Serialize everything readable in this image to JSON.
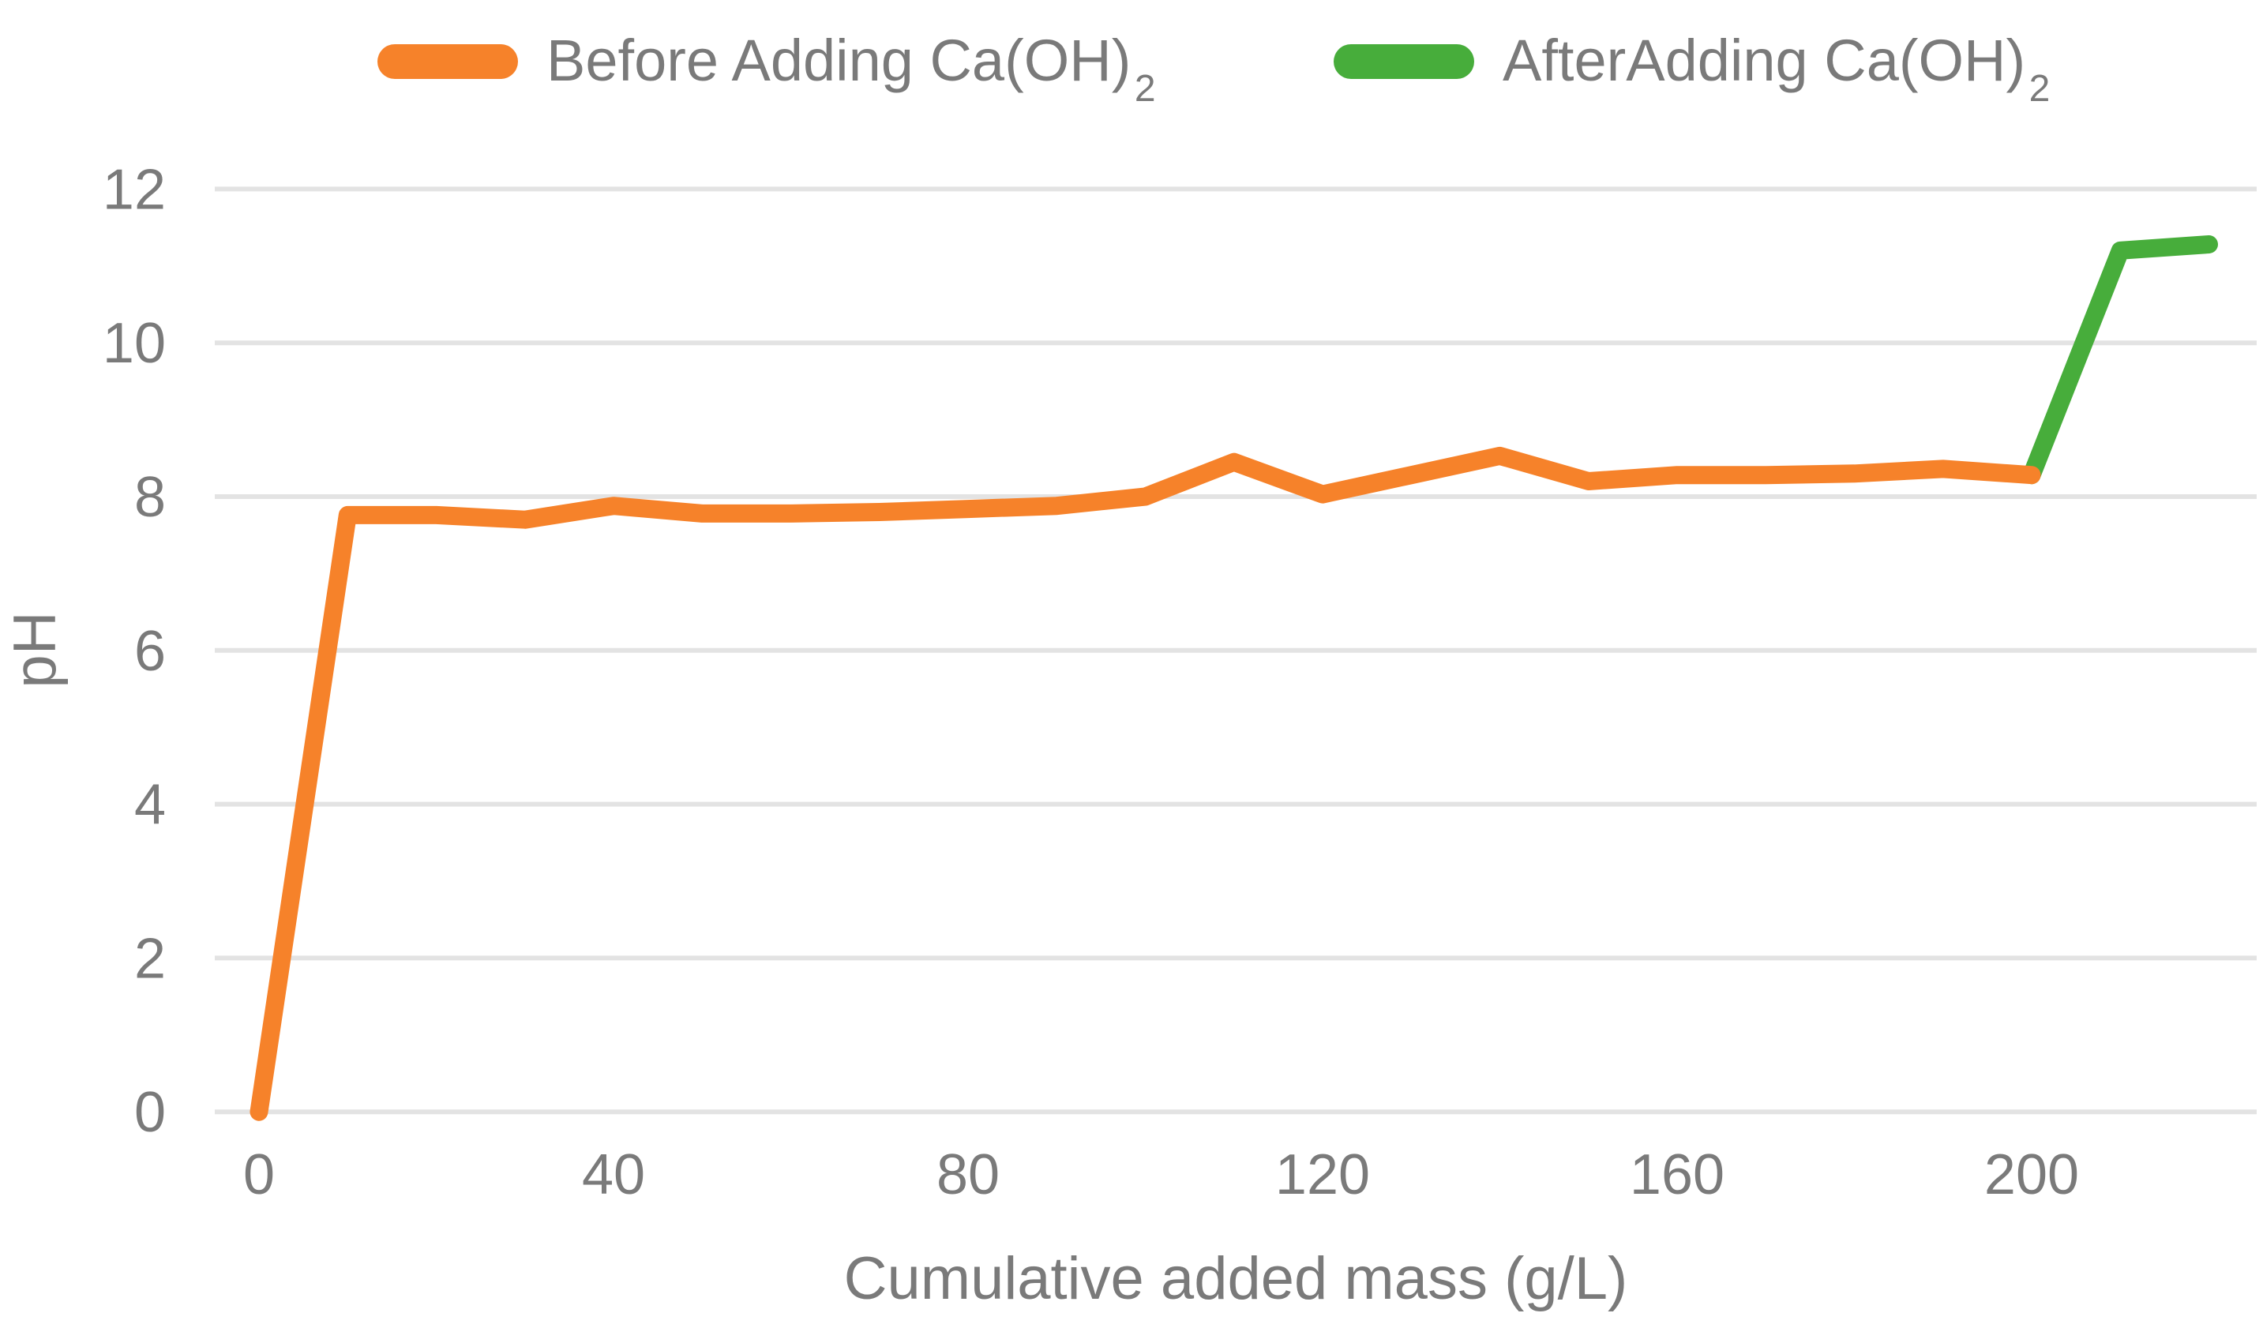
{
  "chart_data": {
    "type": "line",
    "title": "",
    "xlabel": "Cumulative added mass (g/L)",
    "ylabel": "pH",
    "xlim": [
      0,
      225
    ],
    "ylim": [
      0,
      12
    ],
    "x_ticks": [
      0,
      40,
      80,
      120,
      160,
      200
    ],
    "y_ticks": [
      0,
      2,
      4,
      6,
      8,
      10,
      12
    ],
    "grid": "horizontal-only",
    "legend_position": "top",
    "background_color": "#ffffff",
    "grid_color": "#e3e3e3",
    "text_color": "#7a7a7a",
    "series": [
      {
        "name": "Before Adding Ca(OH)2",
        "label": "Before Adding Ca(OH)",
        "sub": "2",
        "color": "#f6822a",
        "points": [
          [
            0,
            0
          ],
          [
            10,
            7.76
          ],
          [
            20,
            7.76
          ],
          [
            30,
            7.7
          ],
          [
            40,
            7.88
          ],
          [
            50,
            7.78
          ],
          [
            60,
            7.78
          ],
          [
            70,
            7.8
          ],
          [
            80,
            7.84
          ],
          [
            90,
            7.88
          ],
          [
            100,
            8.0
          ],
          [
            110,
            8.45
          ],
          [
            120,
            8.03
          ],
          [
            130,
            8.28
          ],
          [
            140,
            8.53
          ],
          [
            150,
            8.2
          ],
          [
            160,
            8.28
          ],
          [
            170,
            8.28
          ],
          [
            180,
            8.3
          ],
          [
            190,
            8.36
          ],
          [
            200,
            8.28
          ]
        ]
      },
      {
        "name": "AfterAdding Ca(OH)2",
        "label": "AfterAdding Ca(OH)",
        "sub": "2",
        "color": "#47ad3b",
        "points": [
          [
            200,
            8.28
          ],
          [
            210,
            11.2
          ],
          [
            220,
            11.28
          ]
        ]
      }
    ]
  }
}
